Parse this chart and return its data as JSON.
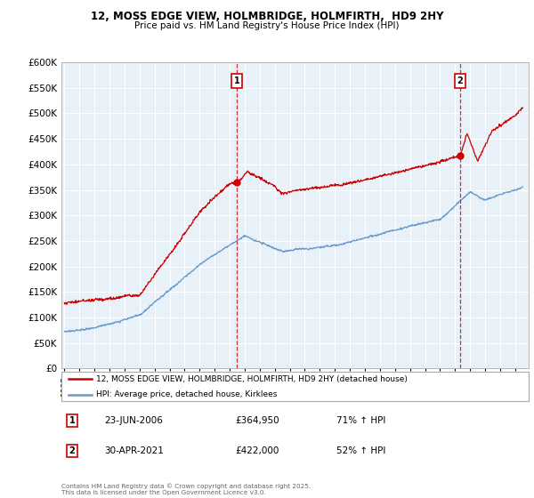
{
  "title1": "12, MOSS EDGE VIEW, HOLMBRIDGE, HOLMFIRTH,  HD9 2HY",
  "title2": "Price paid vs. HM Land Registry's House Price Index (HPI)",
  "legend1": "12, MOSS EDGE VIEW, HOLMBRIDGE, HOLMFIRTH, HD9 2HY (detached house)",
  "legend2": "HPI: Average price, detached house, Kirklees",
  "sale1_label": "1",
  "sale1_date": "23-JUN-2006",
  "sale1_price": "£364,950",
  "sale1_hpi": "71% ↑ HPI",
  "sale2_label": "2",
  "sale2_date": "30-APR-2021",
  "sale2_price": "£422,000",
  "sale2_hpi": "52% ↑ HPI",
  "footnote": "Contains HM Land Registry data © Crown copyright and database right 2025.\nThis data is licensed under the Open Government Licence v3.0.",
  "vline1_year": 2006.47,
  "vline2_year": 2021.33,
  "ylim": [
    0,
    600000
  ],
  "yticks": [
    0,
    50000,
    100000,
    150000,
    200000,
    250000,
    300000,
    350000,
    400000,
    450000,
    500000,
    550000,
    600000
  ],
  "red_color": "#cc0000",
  "blue_color": "#6699cc",
  "chart_bg": "#e8f0f8",
  "bg_color": "#ffffff",
  "grid_color": "#ffffff"
}
